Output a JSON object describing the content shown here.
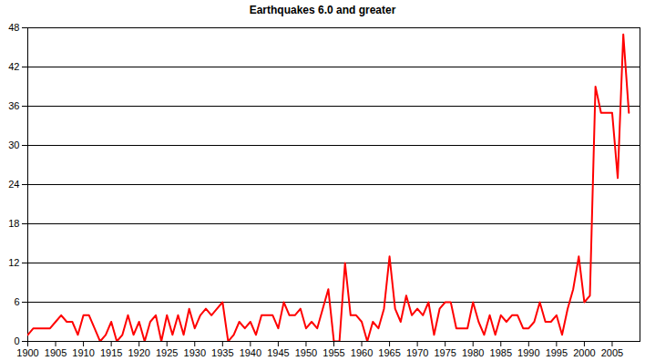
{
  "chart_data": {
    "type": "line",
    "title": "Earthquakes 6.0 and greater",
    "x": [
      1900,
      1901,
      1902,
      1903,
      1904,
      1905,
      1906,
      1907,
      1908,
      1909,
      1910,
      1911,
      1912,
      1913,
      1914,
      1915,
      1916,
      1917,
      1918,
      1919,
      1920,
      1921,
      1922,
      1923,
      1924,
      1925,
      1926,
      1927,
      1928,
      1929,
      1930,
      1931,
      1932,
      1933,
      1934,
      1935,
      1936,
      1937,
      1938,
      1939,
      1940,
      1941,
      1942,
      1943,
      1944,
      1945,
      1946,
      1947,
      1948,
      1949,
      1950,
      1951,
      1952,
      1953,
      1954,
      1955,
      1956,
      1957,
      1958,
      1959,
      1960,
      1961,
      1962,
      1963,
      1964,
      1965,
      1966,
      1967,
      1968,
      1969,
      1970,
      1971,
      1972,
      1973,
      1974,
      1975,
      1976,
      1977,
      1978,
      1979,
      1980,
      1981,
      1982,
      1983,
      1984,
      1985,
      1986,
      1987,
      1988,
      1989,
      1990,
      1991,
      1992,
      1993,
      1994,
      1995,
      1996,
      1997,
      1998,
      1999,
      2000,
      2001,
      2002,
      2003,
      2004,
      2005,
      2006,
      2007,
      2008
    ],
    "values": [
      1,
      2,
      2,
      2,
      2,
      3,
      4,
      3,
      3,
      1,
      4,
      4,
      2,
      0,
      1,
      3,
      0,
      1,
      4,
      1,
      3,
      0,
      3,
      4,
      0,
      4,
      1,
      4,
      1,
      5,
      2,
      4,
      5,
      4,
      5,
      6,
      0,
      1,
      3,
      2,
      3,
      1,
      4,
      4,
      4,
      2,
      6,
      4,
      4,
      5,
      2,
      3,
      2,
      5,
      8,
      0,
      0,
      12,
      4,
      4,
      3,
      0,
      3,
      2,
      5,
      13,
      5,
      3,
      7,
      4,
      5,
      4,
      6,
      1,
      5,
      6,
      6,
      2,
      2,
      2,
      6,
      3,
      1,
      4,
      1,
      4,
      3,
      4,
      4,
      2,
      2,
      3,
      6,
      3,
      3,
      4,
      1,
      5,
      8,
      13,
      6,
      7,
      39,
      35,
      35,
      35,
      25,
      47,
      35
    ],
    "color": "#ff0000",
    "xlim": [
      1900,
      2010
    ],
    "xticks": [
      1900,
      1905,
      1910,
      1915,
      1920,
      1925,
      1930,
      1935,
      1940,
      1945,
      1950,
      1955,
      1960,
      1965,
      1970,
      1975,
      1980,
      1985,
      1990,
      1995,
      2000,
      2005
    ],
    "ylim": [
      0,
      48
    ],
    "yticks": [
      0,
      6,
      12,
      18,
      24,
      30,
      36,
      42,
      48
    ],
    "grid": true
  }
}
